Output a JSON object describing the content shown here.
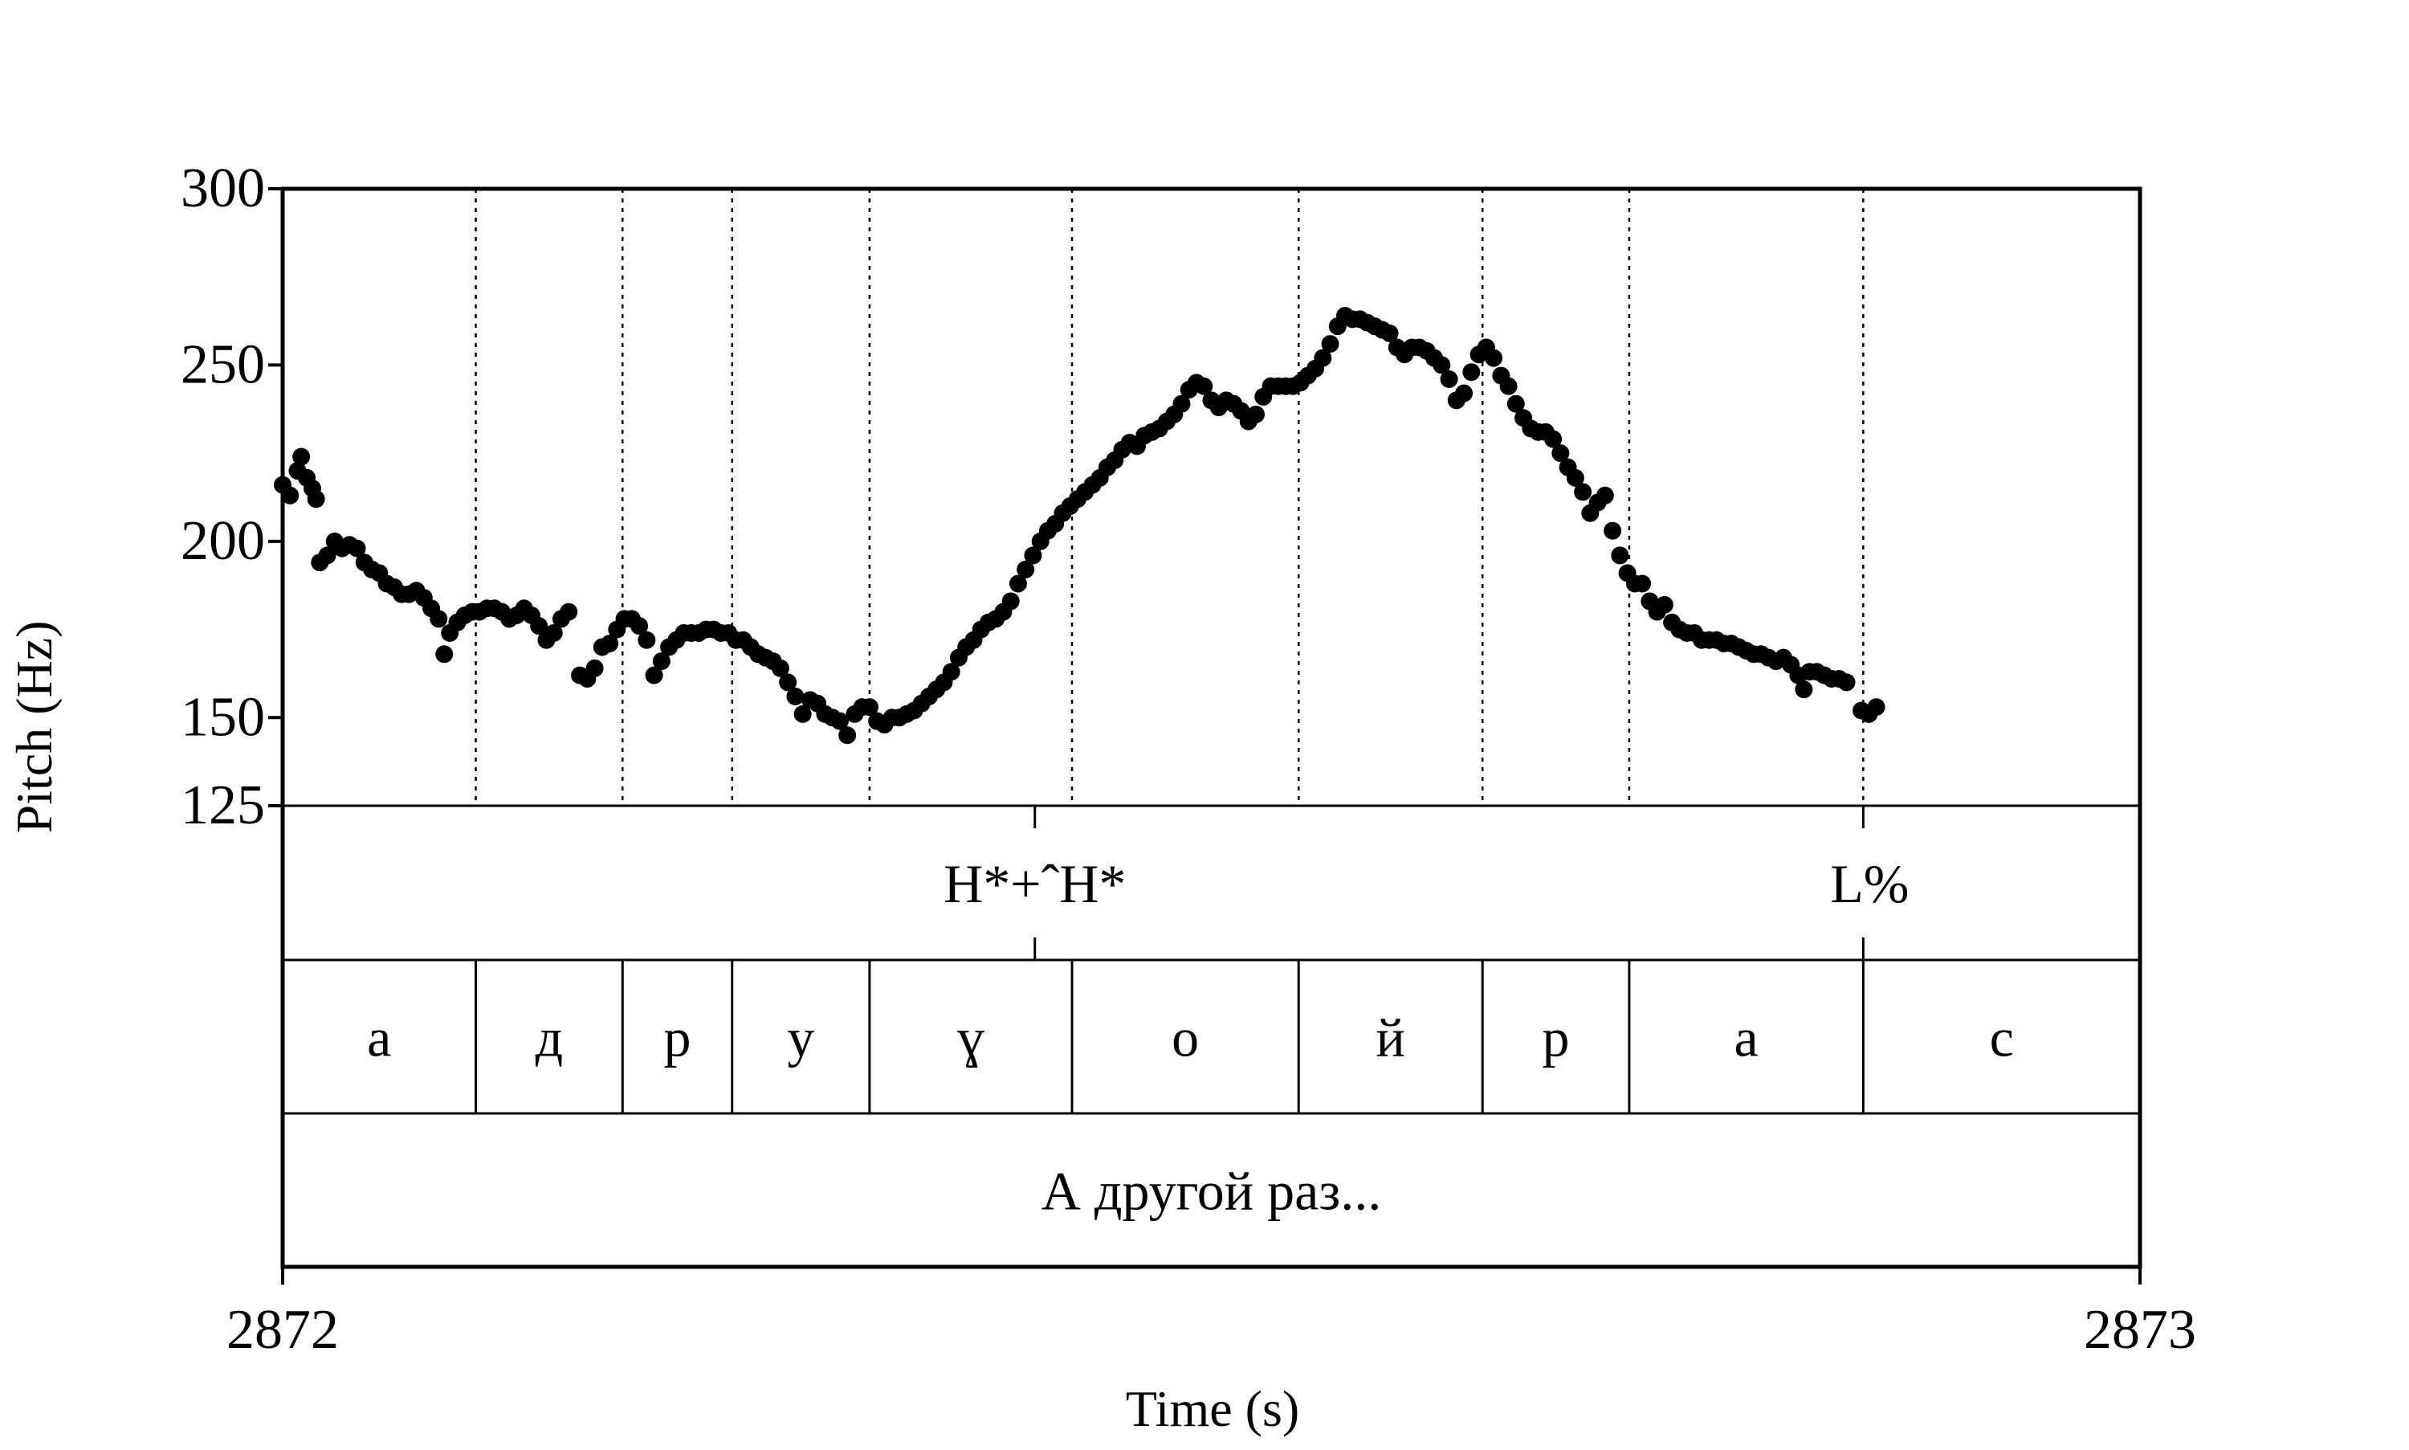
{
  "chart_data": {
    "type": "scatter",
    "xlabel": "Time (s)",
    "ylabel": "Pitch (Hz)",
    "xlim": [
      2872,
      2873
    ],
    "ylim": [
      125,
      300
    ],
    "x_ticks": [
      "2872",
      "2873"
    ],
    "y_ticks": [
      {
        "value": 300,
        "label": "300"
      },
      {
        "value": 250,
        "label": "250"
      },
      {
        "value": 200,
        "label": "200"
      },
      {
        "value": 150,
        "label": "150"
      },
      {
        "value": 125,
        "label": "125"
      }
    ],
    "grid": "dotted vertical lines at segment boundaries",
    "color": "#000000",
    "series": [
      {
        "points": [
          [
            2872.0,
            216
          ],
          [
            2872.004,
            213
          ],
          [
            2872.008,
            220
          ],
          [
            2872.01,
            224
          ],
          [
            2872.013,
            218
          ],
          [
            2872.016,
            215
          ],
          [
            2872.018,
            212
          ],
          [
            2872.02,
            194
          ],
          [
            2872.024,
            196
          ],
          [
            2872.028,
            200
          ],
          [
            2872.032,
            198
          ],
          [
            2872.036,
            199
          ],
          [
            2872.04,
            198
          ],
          [
            2872.044,
            194
          ],
          [
            2872.048,
            192
          ],
          [
            2872.052,
            191
          ],
          [
            2872.056,
            188
          ],
          [
            2872.06,
            187
          ],
          [
            2872.064,
            185
          ],
          [
            2872.068,
            185
          ],
          [
            2872.072,
            186
          ],
          [
            2872.076,
            184
          ],
          [
            2872.08,
            181
          ],
          [
            2872.084,
            178
          ],
          [
            2872.087,
            168
          ],
          [
            2872.09,
            174
          ],
          [
            2872.094,
            177
          ],
          [
            2872.098,
            179
          ],
          [
            2872.102,
            180
          ],
          [
            2872.106,
            180
          ],
          [
            2872.11,
            181
          ],
          [
            2872.114,
            181
          ],
          [
            2872.118,
            180
          ],
          [
            2872.122,
            178
          ],
          [
            2872.126,
            179
          ],
          [
            2872.13,
            181
          ],
          [
            2872.134,
            179
          ],
          [
            2872.138,
            176
          ],
          [
            2872.142,
            172
          ],
          [
            2872.146,
            174
          ],
          [
            2872.15,
            178
          ],
          [
            2872.154,
            180
          ],
          [
            2872.16,
            162
          ],
          [
            2872.164,
            161
          ],
          [
            2872.168,
            164
          ],
          [
            2872.172,
            170
          ],
          [
            2872.176,
            171
          ],
          [
            2872.18,
            175
          ],
          [
            2872.184,
            178
          ],
          [
            2872.188,
            178
          ],
          [
            2872.192,
            176
          ],
          [
            2872.196,
            172
          ],
          [
            2872.2,
            162
          ],
          [
            2872.204,
            166
          ],
          [
            2872.208,
            170
          ],
          [
            2872.212,
            172
          ],
          [
            2872.216,
            174
          ],
          [
            2872.22,
            174
          ],
          [
            2872.224,
            174
          ],
          [
            2872.228,
            175
          ],
          [
            2872.232,
            175
          ],
          [
            2872.236,
            174
          ],
          [
            2872.24,
            174
          ],
          [
            2872.244,
            172
          ],
          [
            2872.248,
            172
          ],
          [
            2872.252,
            170
          ],
          [
            2872.256,
            168
          ],
          [
            2872.26,
            167
          ],
          [
            2872.264,
            166
          ],
          [
            2872.268,
            164
          ],
          [
            2872.272,
            160
          ],
          [
            2872.276,
            156
          ],
          [
            2872.28,
            151
          ],
          [
            2872.284,
            155
          ],
          [
            2872.288,
            154
          ],
          [
            2872.292,
            151
          ],
          [
            2872.296,
            150
          ],
          [
            2872.3,
            149
          ],
          [
            2872.304,
            145
          ],
          [
            2872.308,
            151
          ],
          [
            2872.312,
            153
          ],
          [
            2872.316,
            153
          ],
          [
            2872.32,
            149
          ],
          [
            2872.324,
            148
          ],
          [
            2872.328,
            150
          ],
          [
            2872.332,
            150
          ],
          [
            2872.336,
            151
          ],
          [
            2872.34,
            152
          ],
          [
            2872.344,
            154
          ],
          [
            2872.348,
            156
          ],
          [
            2872.352,
            158
          ],
          [
            2872.356,
            160
          ],
          [
            2872.36,
            163
          ],
          [
            2872.364,
            167
          ],
          [
            2872.368,
            170
          ],
          [
            2872.372,
            172
          ],
          [
            2872.376,
            175
          ],
          [
            2872.38,
            177
          ],
          [
            2872.384,
            178
          ],
          [
            2872.388,
            180
          ],
          [
            2872.392,
            183
          ],
          [
            2872.396,
            188
          ],
          [
            2872.4,
            192
          ],
          [
            2872.404,
            196
          ],
          [
            2872.408,
            200
          ],
          [
            2872.412,
            203
          ],
          [
            2872.416,
            205
          ],
          [
            2872.42,
            208
          ],
          [
            2872.424,
            210
          ],
          [
            2872.428,
            212
          ],
          [
            2872.432,
            214
          ],
          [
            2872.436,
            216
          ],
          [
            2872.44,
            218
          ],
          [
            2872.444,
            221
          ],
          [
            2872.448,
            223
          ],
          [
            2872.452,
            226
          ],
          [
            2872.456,
            228
          ],
          [
            2872.46,
            227
          ],
          [
            2872.464,
            230
          ],
          [
            2872.468,
            231
          ],
          [
            2872.472,
            232
          ],
          [
            2872.476,
            234
          ],
          [
            2872.48,
            236
          ],
          [
            2872.484,
            239
          ],
          [
            2872.488,
            243
          ],
          [
            2872.492,
            245
          ],
          [
            2872.496,
            244
          ],
          [
            2872.5,
            240
          ],
          [
            2872.504,
            238
          ],
          [
            2872.508,
            240
          ],
          [
            2872.512,
            239
          ],
          [
            2872.516,
            237
          ],
          [
            2872.52,
            234
          ],
          [
            2872.524,
            236
          ],
          [
            2872.528,
            241
          ],
          [
            2872.532,
            244
          ],
          [
            2872.536,
            244
          ],
          [
            2872.54,
            244
          ],
          [
            2872.544,
            244
          ],
          [
            2872.548,
            245
          ],
          [
            2872.552,
            247
          ],
          [
            2872.556,
            249
          ],
          [
            2872.56,
            252
          ],
          [
            2872.564,
            256
          ],
          [
            2872.568,
            261
          ],
          [
            2872.572,
            264
          ],
          [
            2872.576,
            263
          ],
          [
            2872.58,
            263
          ],
          [
            2872.584,
            262
          ],
          [
            2872.588,
            261
          ],
          [
            2872.592,
            260
          ],
          [
            2872.596,
            259
          ],
          [
            2872.6,
            255
          ],
          [
            2872.604,
            253
          ],
          [
            2872.608,
            255
          ],
          [
            2872.612,
            255
          ],
          [
            2872.616,
            254
          ],
          [
            2872.62,
            252
          ],
          [
            2872.624,
            250
          ],
          [
            2872.628,
            246
          ],
          [
            2872.632,
            240
          ],
          [
            2872.636,
            242
          ],
          [
            2872.64,
            248
          ],
          [
            2872.644,
            253
          ],
          [
            2872.648,
            255
          ],
          [
            2872.652,
            252
          ],
          [
            2872.656,
            247
          ],
          [
            2872.66,
            244
          ],
          [
            2872.664,
            239
          ],
          [
            2872.668,
            235
          ],
          [
            2872.672,
            232
          ],
          [
            2872.676,
            231
          ],
          [
            2872.68,
            231
          ],
          [
            2872.684,
            229
          ],
          [
            2872.688,
            225
          ],
          [
            2872.692,
            221
          ],
          [
            2872.696,
            218
          ],
          [
            2872.7,
            214
          ],
          [
            2872.704,
            208
          ],
          [
            2872.708,
            211
          ],
          [
            2872.712,
            213
          ],
          [
            2872.716,
            203
          ],
          [
            2872.72,
            196
          ],
          [
            2872.724,
            191
          ],
          [
            2872.728,
            188
          ],
          [
            2872.732,
            188
          ],
          [
            2872.736,
            183
          ],
          [
            2872.74,
            180
          ],
          [
            2872.744,
            182
          ],
          [
            2872.748,
            177
          ],
          [
            2872.752,
            175
          ],
          [
            2872.756,
            174
          ],
          [
            2872.76,
            174
          ],
          [
            2872.764,
            172
          ],
          [
            2872.768,
            172
          ],
          [
            2872.772,
            172
          ],
          [
            2872.776,
            171
          ],
          [
            2872.78,
            171
          ],
          [
            2872.784,
            170
          ],
          [
            2872.788,
            169
          ],
          [
            2872.792,
            168
          ],
          [
            2872.796,
            168
          ],
          [
            2872.8,
            167
          ],
          [
            2872.804,
            166
          ],
          [
            2872.808,
            167
          ],
          [
            2872.812,
            165
          ],
          [
            2872.816,
            162
          ],
          [
            2872.819,
            158
          ],
          [
            2872.822,
            163
          ],
          [
            2872.826,
            163
          ],
          [
            2872.83,
            162
          ],
          [
            2872.834,
            161
          ],
          [
            2872.838,
            161
          ],
          [
            2872.842,
            160
          ],
          [
            2872.85,
            152
          ],
          [
            2872.854,
            151
          ],
          [
            2872.858,
            153
          ]
        ]
      }
    ],
    "boundaries": [
      2872.104,
      2872.183,
      2872.242,
      2872.316,
      2872.425,
      2872.547,
      2872.646,
      2872.725,
      2872.851
    ],
    "tiers": [
      {
        "labels": [
          {
            "text": "H*+ˆH*",
            "x": 2872.405
          },
          {
            "text": "L%",
            "x": 2872.851
          }
        ]
      },
      {
        "segments": [
          {
            "text": "а",
            "start": 2872.0,
            "end": 2872.104
          },
          {
            "text": "д",
            "start": 2872.104,
            "end": 2872.183
          },
          {
            "text": "р",
            "start": 2872.183,
            "end": 2872.242
          },
          {
            "text": "у",
            "start": 2872.242,
            "end": 2872.316
          },
          {
            "text": "ɣ",
            "start": 2872.316,
            "end": 2872.425
          },
          {
            "text": "о",
            "start": 2872.425,
            "end": 2872.547
          },
          {
            "text": "й",
            "start": 2872.547,
            "end": 2872.646
          },
          {
            "text": "р",
            "start": 2872.646,
            "end": 2872.725
          },
          {
            "text": "а",
            "start": 2872.725,
            "end": 2872.851
          },
          {
            "text": "с",
            "start": 2872.851,
            "end": 2873.0
          }
        ]
      },
      {
        "segments": [
          {
            "text": "А другой раз...",
            "start": 2872.0,
            "end": 2873.0
          }
        ]
      }
    ]
  }
}
